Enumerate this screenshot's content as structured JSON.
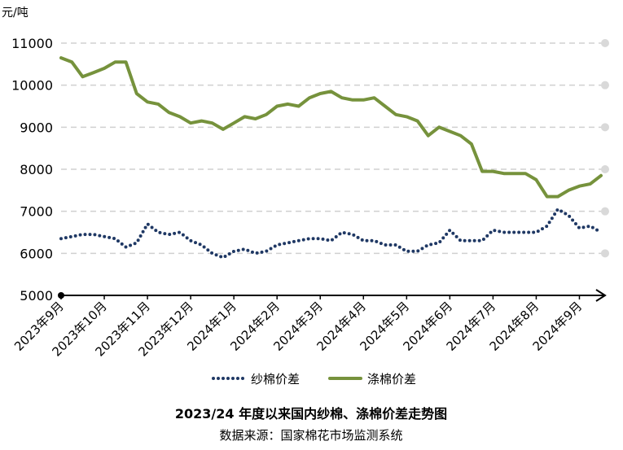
{
  "chart_data": {
    "type": "line",
    "title": "2023/24 年度以来国内纱棉、涤棉价差走势图",
    "subtitle": "数据来源：国家棉花市场监测系统",
    "y_label": "元/吨",
    "categories": [
      "2023年9月",
      null,
      null,
      null,
      "2023年10月",
      null,
      null,
      null,
      "2023年11月",
      null,
      null,
      null,
      "2023年12月",
      null,
      null,
      null,
      "2024年1月",
      null,
      null,
      null,
      "2024年2月",
      null,
      null,
      null,
      "2024年3月",
      null,
      null,
      null,
      "2024年4月",
      null,
      null,
      null,
      "2024年5月",
      null,
      null,
      null,
      "2024年6月",
      null,
      null,
      null,
      "2024年7月",
      null,
      null,
      null,
      "2024年8月",
      null,
      null,
      null,
      "2024年9月",
      null,
      null
    ],
    "series": [
      {
        "name": "纱棉价差",
        "color": "#1f3864",
        "style": "dotted",
        "values": [
          6350,
          6400,
          6450,
          6450,
          6400,
          6350,
          6150,
          6250,
          6700,
          6500,
          6450,
          6500,
          6300,
          6200,
          6000,
          5900,
          6050,
          6100,
          6000,
          6050,
          6200,
          6250,
          6300,
          6350,
          6350,
          6300,
          6500,
          6450,
          6300,
          6300,
          6200,
          6200,
          6050,
          6050,
          6200,
          6250,
          6550,
          6300,
          6300,
          6300,
          6550,
          6500,
          6500,
          6500,
          6500,
          6650,
          7050,
          6900,
          6600,
          6650,
          6500
        ]
      },
      {
        "name": "涤棉价差",
        "color": "#76923c",
        "style": "solid",
        "values": [
          10650,
          10550,
          10200,
          10300,
          10400,
          10550,
          10550,
          9800,
          9600,
          9550,
          9350,
          9250,
          9100,
          9150,
          9100,
          8950,
          9100,
          9250,
          9200,
          9300,
          9500,
          9550,
          9500,
          9700,
          9800,
          9850,
          9700,
          9650,
          9650,
          9700,
          9500,
          9300,
          9250,
          9150,
          8800,
          9000,
          8900,
          8800,
          8600,
          7950,
          7950,
          7900,
          7900,
          7900,
          7750,
          7350,
          7350,
          7500,
          7600,
          7650,
          7850
        ]
      }
    ],
    "ylim": [
      5000,
      11000
    ],
    "yticks": [
      5000,
      6000,
      7000,
      8000,
      9000,
      10000,
      11000
    ],
    "grid": true,
    "legend": "bottom"
  }
}
